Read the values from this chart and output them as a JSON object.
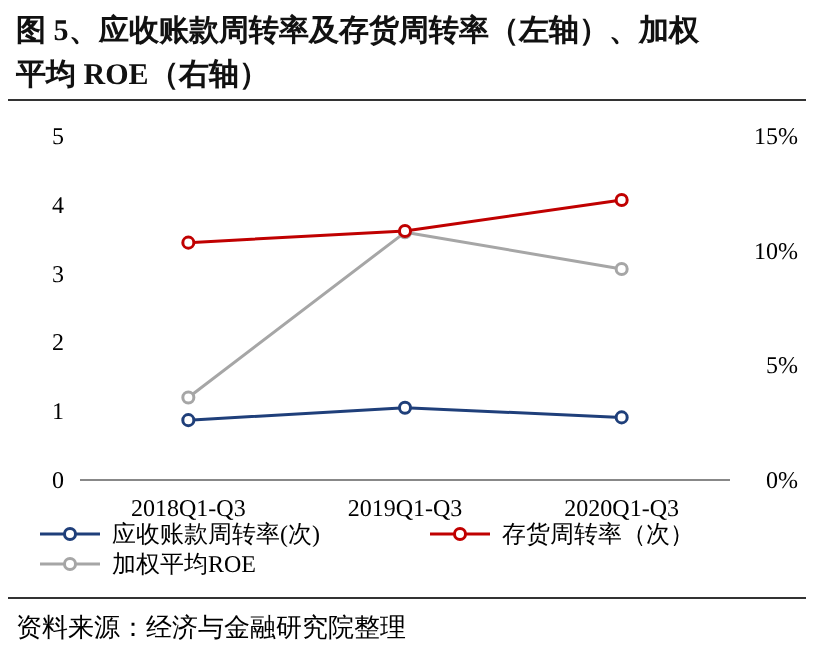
{
  "chart_data": {
    "type": "line",
    "title": "图 5、应收账款周转率及存货周转率（左轴）、加权平均 ROE（右轴）",
    "categories": [
      "2018Q1-Q3",
      "2019Q1-Q3",
      "2020Q1-Q3"
    ],
    "series": [
      {
        "name": "应收账款周转率(次)",
        "color": "#1f3f7a",
        "values": [
          0.87,
          1.05,
          0.91
        ]
      },
      {
        "name": "存货周转率（次）",
        "color": "#c00000",
        "values": [
          3.45,
          3.62,
          4.07
        ]
      },
      {
        "name": "加权平均ROE",
        "color": "#a6a6a6",
        "values": [
          3.6,
          10.8,
          9.2
        ],
        "axis": "y2"
      }
    ],
    "ylim": [
      0,
      5
    ],
    "yticks": [
      0,
      1,
      2,
      3,
      4,
      5
    ],
    "y2lim": [
      0,
      15
    ],
    "y2ticks": [
      {
        "value": 0,
        "label": "0%"
      },
      {
        "value": 5,
        "label": "5%"
      },
      {
        "value": 10,
        "label": "10%"
      },
      {
        "value": 15,
        "label": "15%"
      }
    ],
    "marker": "circle",
    "legend": "bottom",
    "annotations": [
      "资料来源：经济与金融研究院整理"
    ]
  }
}
